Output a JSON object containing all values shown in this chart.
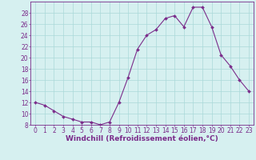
{
  "x": [
    0,
    1,
    2,
    3,
    4,
    5,
    6,
    7,
    8,
    9,
    10,
    11,
    12,
    13,
    14,
    15,
    16,
    17,
    18,
    19,
    20,
    21,
    22,
    23
  ],
  "y": [
    12,
    11.5,
    10.5,
    9.5,
    9,
    8.5,
    8.5,
    8,
    8.5,
    12,
    16.5,
    21.5,
    24,
    25,
    27,
    27.5,
    25.5,
    29,
    29,
    25.5,
    20.5,
    18.5,
    16,
    14
  ],
  "line_color": "#7b2d8b",
  "marker": "D",
  "marker_size": 2,
  "bg_color": "#d6f0f0",
  "grid_color": "#aad8d8",
  "xlabel": "Windchill (Refroidissement éolien,°C)",
  "ylabel": "",
  "ylim": [
    8,
    30
  ],
  "xlim": [
    -0.5,
    23.5
  ],
  "yticks": [
    8,
    10,
    12,
    14,
    16,
    18,
    20,
    22,
    24,
    26,
    28
  ],
  "xticks": [
    0,
    1,
    2,
    3,
    4,
    5,
    6,
    7,
    8,
    9,
    10,
    11,
    12,
    13,
    14,
    15,
    16,
    17,
    18,
    19,
    20,
    21,
    22,
    23
  ],
  "tick_fontsize": 5.5,
  "xlabel_fontsize": 6.5,
  "tick_color": "#7b2d8b",
  "label_color": "#7b2d8b",
  "spine_color": "#7b2d8b"
}
